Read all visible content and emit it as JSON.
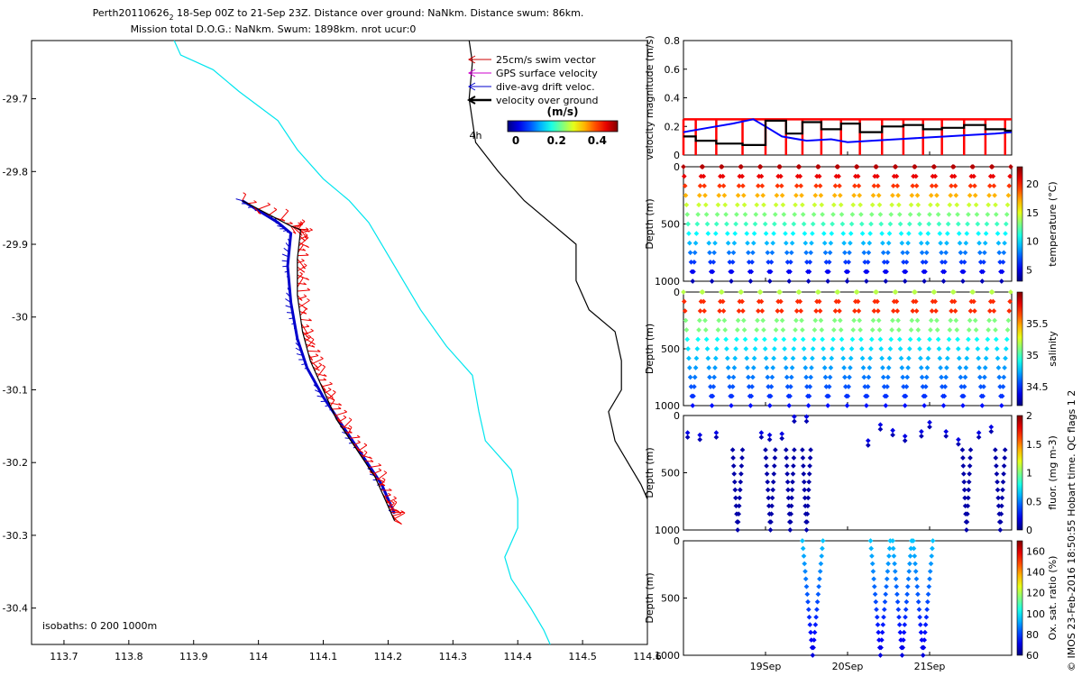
{
  "title": {
    "line1_prefix": "Perth20110626",
    "line1_subscript": "2",
    "line1_rest": " 18-Sep 00Z to 21-Sep 23Z. Distance over ground: NaNkm. Distance swum: 86km.",
    "line2": "Mission total D.O.G.: NaNkm. Swum: 1898km. nrot ucur:0"
  },
  "side_text": "© IMOS 23-Feb-2016 18:50:55 Hobart time. QC flags 1  2",
  "chart_data": [
    {
      "type": "line",
      "name": "map",
      "xlim": [
        113.65,
        114.6
      ],
      "ylim": [
        -30.45,
        -29.62
      ],
      "x_ticks": [
        "113.7",
        "113.8",
        "113.9",
        "114",
        "114.1",
        "114.2",
        "114.3",
        "114.4",
        "114.5",
        "114.6"
      ],
      "x_tick_values": [
        113.7,
        113.8,
        113.9,
        114.0,
        114.1,
        114.2,
        114.3,
        114.4,
        114.5,
        114.6
      ],
      "y_ticks": [
        "-29.7",
        "-29.8",
        "-29.9",
        "-30",
        "-30.1",
        "-30.2",
        "-30.3",
        "-30.4"
      ],
      "y_tick_values": [
        -29.7,
        -29.8,
        -29.9,
        -30.0,
        -30.1,
        -30.2,
        -30.3,
        -30.4
      ],
      "isobath_label": "isobaths: 0   200  1000m",
      "time_marker_label": "4h",
      "legend": [
        {
          "label": "25cm/s swim vector",
          "color": "#cc0000"
        },
        {
          "label": "GPS surface velocity",
          "color": "#cc00cc"
        },
        {
          "label": "dive-avg drift veloc.",
          "color": "#0000cc"
        },
        {
          "label": "velocity over ground",
          "color": "#000000"
        }
      ],
      "colorbar": {
        "title": "(m/s)",
        "ticks": [
          "0",
          "0.2",
          "0.4"
        ],
        "tick_values": [
          0,
          0.2,
          0.4
        ],
        "range": [
          -0.04,
          0.5
        ]
      },
      "isobaths": [
        {
          "depth": "200",
          "color": "#00e5ee",
          "points": [
            [
              113.87,
              -29.62
            ],
            [
              113.88,
              -29.64
            ],
            [
              113.93,
              -29.66
            ],
            [
              113.97,
              -29.69
            ],
            [
              114.03,
              -29.73
            ],
            [
              114.06,
              -29.77
            ],
            [
              114.1,
              -29.81
            ],
            [
              114.14,
              -29.84
            ],
            [
              114.17,
              -29.87
            ],
            [
              114.21,
              -29.93
            ],
            [
              114.25,
              -29.99
            ],
            [
              114.29,
              -30.04
            ],
            [
              114.33,
              -30.08
            ],
            [
              114.34,
              -30.13
            ],
            [
              114.35,
              -30.17
            ],
            [
              114.39,
              -30.21
            ],
            [
              114.4,
              -30.25
            ],
            [
              114.4,
              -30.29
            ],
            [
              114.38,
              -30.33
            ],
            [
              114.39,
              -30.36
            ],
            [
              114.42,
              -30.4
            ],
            [
              114.44,
              -30.43
            ],
            [
              114.45,
              -30.45
            ]
          ]
        },
        {
          "depth": "1000",
          "color": "#000000",
          "points": [
            [
              114.325,
              -29.62
            ],
            [
              114.33,
              -29.65
            ],
            [
              114.325,
              -29.7
            ],
            [
              114.335,
              -29.76
            ],
            [
              114.37,
              -29.8
            ],
            [
              114.41,
              -29.84
            ],
            [
              114.45,
              -29.87
            ],
            [
              114.49,
              -29.9
            ],
            [
              114.49,
              -29.95
            ],
            [
              114.51,
              -29.99
            ],
            [
              114.55,
              -30.02
            ],
            [
              114.56,
              -30.06
            ],
            [
              114.56,
              -30.1
            ],
            [
              114.54,
              -30.13
            ],
            [
              114.55,
              -30.17
            ],
            [
              114.57,
              -30.2
            ],
            [
              114.59,
              -30.23
            ],
            [
              114.6,
              -30.25
            ]
          ]
        }
      ],
      "track": {
        "color": "#000000",
        "points": [
          [
            113.975,
            -29.84
          ],
          [
            114.05,
            -29.875
          ],
          [
            114.065,
            -29.88
          ],
          [
            114.06,
            -29.92
          ],
          [
            114.06,
            -29.97
          ],
          [
            114.068,
            -30.02
          ],
          [
            114.08,
            -30.06
          ],
          [
            114.1,
            -30.1
          ],
          [
            114.12,
            -30.14
          ],
          [
            114.15,
            -30.18
          ],
          [
            114.18,
            -30.22
          ],
          [
            114.2,
            -30.26
          ],
          [
            114.21,
            -30.28
          ]
        ]
      },
      "drift_track": {
        "color": "#0000cc",
        "points": [
          [
            113.975,
            -29.84
          ],
          [
            114.03,
            -29.87
          ],
          [
            114.05,
            -29.885
          ],
          [
            114.045,
            -29.93
          ],
          [
            114.05,
            -29.98
          ],
          [
            114.06,
            -30.03
          ],
          [
            114.075,
            -30.07
          ],
          [
            114.1,
            -30.11
          ],
          [
            114.13,
            -30.15
          ],
          [
            114.16,
            -30.19
          ],
          [
            114.19,
            -30.23
          ],
          [
            114.21,
            -30.27
          ]
        ]
      }
    },
    {
      "type": "line",
      "name": "velocity",
      "ylabel": "velocity magnitude (m/s)",
      "xlim": [
        18.0,
        22.0
      ],
      "ylim": [
        0,
        0.8
      ],
      "y_ticks": [
        "0",
        "0.2",
        "0.4",
        "0.6",
        "0.8"
      ],
      "y_tick_values": [
        0,
        0.2,
        0.4,
        0.6,
        0.8
      ],
      "series": [
        {
          "color": "#ff0000",
          "x": [
            18.0,
            18.15,
            18.4,
            18.72,
            19.0,
            19.25,
            19.45,
            19.68,
            19.92,
            20.15,
            20.42,
            20.68,
            20.92,
            21.15,
            21.42,
            21.68,
            21.92
          ],
          "y": [
            0.25,
            0.25,
            0.25,
            0.25,
            0.25,
            0.25,
            0.25,
            0.25,
            0.25,
            0.25,
            0.25,
            0.25,
            0.25,
            0.25,
            0.25,
            0.25,
            0.25
          ]
        },
        {
          "color": "#0000ff",
          "x": [
            18.0,
            18.3,
            18.6,
            18.85,
            19.0,
            19.2,
            19.5,
            19.8,
            20.0,
            20.3,
            20.6,
            20.9,
            21.2,
            21.5,
            21.8,
            22.0
          ],
          "y": [
            0.16,
            0.19,
            0.22,
            0.25,
            0.2,
            0.13,
            0.1,
            0.11,
            0.09,
            0.1,
            0.11,
            0.12,
            0.13,
            0.14,
            0.15,
            0.16
          ]
        },
        {
          "color": "#000000",
          "x": [
            18.0,
            18.15,
            18.15,
            18.4,
            18.4,
            18.72,
            18.72,
            19.0,
            19.0,
            19.25,
            19.25,
            19.45,
            19.45,
            19.68,
            19.68,
            19.92,
            19.92,
            20.15,
            20.15,
            20.42,
            20.42,
            20.68,
            20.68,
            20.92,
            20.92,
            21.15,
            21.15,
            21.42,
            21.42,
            21.68,
            21.68,
            21.92,
            21.92,
            22.0
          ],
          "y": [
            0.13,
            0.13,
            0.1,
            0.1,
            0.08,
            0.08,
            0.07,
            0.07,
            0.24,
            0.24,
            0.15,
            0.15,
            0.23,
            0.23,
            0.18,
            0.18,
            0.22,
            0.22,
            0.16,
            0.16,
            0.2,
            0.2,
            0.21,
            0.21,
            0.18,
            0.18,
            0.19,
            0.19,
            0.21,
            0.21,
            0.18,
            0.18,
            0.17,
            0.17
          ]
        }
      ]
    },
    {
      "type": "scatter",
      "name": "temperature",
      "ylabel": "Depth (m)",
      "clabel": "temperature (°C)",
      "xlim": [
        18.0,
        22.0
      ],
      "ylim": [
        0,
        1000
      ],
      "y_ticks": [
        "0",
        "500",
        "1000"
      ],
      "y_tick_values": [
        0,
        500,
        1000
      ],
      "crange": [
        3,
        23
      ],
      "c_ticks": [
        "5",
        "10",
        "15",
        "20"
      ],
      "c_tick_values": [
        5,
        10,
        15,
        20
      ],
      "profile": {
        "cycles": 17,
        "start": 18.0,
        "end": 22.0,
        "depth_min": 0,
        "depth_max": 1000,
        "surface_value": 22,
        "bottom_value": 4
      }
    },
    {
      "type": "scatter",
      "name": "salinity",
      "ylabel": "Depth (m)",
      "clabel": "salinity",
      "xlim": [
        18.0,
        22.0
      ],
      "ylim": [
        0,
        1000
      ],
      "y_ticks": [
        "0",
        "500",
        "1000"
      ],
      "y_tick_values": [
        0,
        500,
        1000
      ],
      "crange": [
        34.2,
        36.0
      ],
      "c_ticks": [
        "34.5",
        "35",
        "35.5"
      ],
      "c_tick_values": [
        34.5,
        35,
        35.5
      ],
      "profile": {
        "cycles": 17,
        "start": 18.0,
        "end": 22.0,
        "depth_min": 0,
        "depth_max": 1000,
        "surface_value": 35.2,
        "mid_value": 35.7,
        "bottom_value": 34.45
      }
    },
    {
      "type": "scatter",
      "name": "fluorescence",
      "ylabel": "Depth (m)",
      "clabel": "fluor. (mg m-3)",
      "xlim": [
        18.0,
        22.0
      ],
      "ylim": [
        0,
        1000
      ],
      "y_ticks": [
        "0",
        "500",
        "1000"
      ],
      "y_tick_values": [
        0,
        500,
        1000
      ],
      "crange": [
        0,
        2
      ],
      "c_ticks": [
        "0",
        "0.5",
        "1",
        "1.5",
        "2"
      ],
      "c_tick_values": [
        0,
        0.5,
        1,
        1.5,
        2
      ],
      "deep_profiles": [
        [
          18.6,
          18.72
        ],
        [
          19.0,
          19.12
        ],
        [
          19.25,
          19.35
        ],
        [
          19.45,
          19.55
        ],
        [
          21.4,
          21.5
        ],
        [
          21.8,
          21.92
        ]
      ],
      "shallow_points": [
        [
          18.05,
          150
        ],
        [
          18.2,
          170
        ],
        [
          18.4,
          150
        ],
        [
          18.95,
          150
        ],
        [
          19.05,
          170
        ],
        [
          19.2,
          160
        ],
        [
          19.35,
          10
        ],
        [
          19.5,
          10
        ],
        [
          20.25,
          220
        ],
        [
          20.4,
          80
        ],
        [
          20.55,
          130
        ],
        [
          20.7,
          180
        ],
        [
          20.9,
          140
        ],
        [
          21.0,
          60
        ],
        [
          21.2,
          140
        ],
        [
          21.35,
          210
        ],
        [
          21.6,
          150
        ],
        [
          21.75,
          100
        ]
      ]
    },
    {
      "type": "scatter",
      "name": "oxygen",
      "ylabel": "Depth (m)",
      "clabel": "Ox. sat. ratio (%)",
      "xlim": [
        18.0,
        22.0
      ],
      "ylim": [
        0,
        1000
      ],
      "y_ticks": [
        "0",
        "500",
        "1000"
      ],
      "y_tick_values": [
        0,
        500,
        1000
      ],
      "crange": [
        60,
        170
      ],
      "c_ticks": [
        "60",
        "80",
        "100",
        "120",
        "140",
        "160"
      ],
      "c_tick_values": [
        60,
        80,
        100,
        120,
        140,
        160
      ],
      "v_profiles": [
        [
          19.45,
          19.58,
          19.7
        ],
        [
          20.28,
          20.4,
          20.52
        ],
        [
          20.55,
          20.66,
          20.78
        ],
        [
          20.8,
          20.92,
          21.04
        ]
      ]
    }
  ],
  "time_axis": {
    "labels": [
      "19Sep",
      "20Sep",
      "21Sep"
    ],
    "values": [
      19.0,
      20.0,
      21.0
    ]
  }
}
